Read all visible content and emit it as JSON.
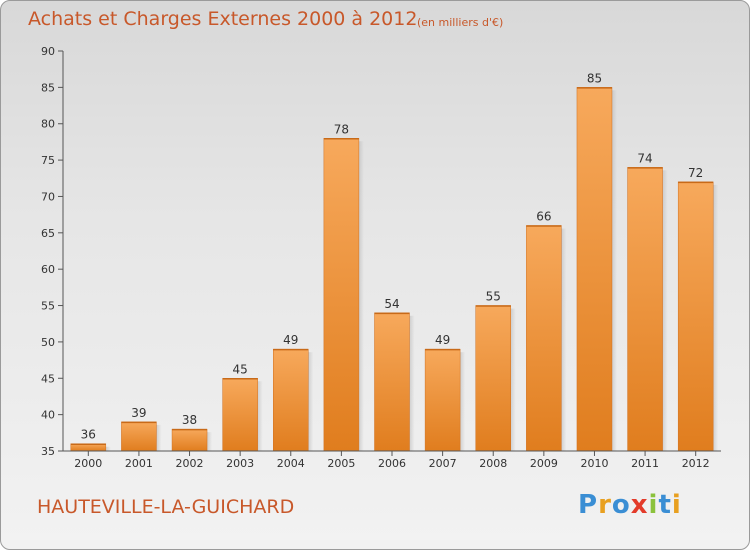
{
  "chart_data": {
    "type": "bar",
    "title": "Achats et Charges Externes 2000 à 2012",
    "subtitle": "(en milliers d'€)",
    "categories": [
      "2000",
      "2001",
      "2002",
      "2003",
      "2004",
      "2005",
      "2006",
      "2007",
      "2008",
      "2009",
      "2010",
      "2011",
      "2012"
    ],
    "values": [
      36,
      39,
      38,
      45,
      49,
      78,
      54,
      49,
      55,
      66,
      85,
      74,
      72
    ],
    "data_labels": [
      "36",
      "39",
      "38",
      "45",
      "49",
      "78",
      "54",
      "49",
      "55",
      "66",
      "85",
      "74",
      "72"
    ],
    "ylim": [
      35,
      90
    ],
    "yticks": [
      35,
      40,
      45,
      50,
      55,
      60,
      65,
      70,
      75,
      80,
      85,
      90
    ],
    "grid": false,
    "bar_color_light": "#f7a95c",
    "bar_color_dark": "#e07d1e"
  },
  "footer": {
    "place": "HAUTEVILLE-LA-GUICHARD",
    "logo_letters": [
      {
        "ch": "P",
        "color": "#3a8ed4"
      },
      {
        "ch": "r",
        "color": "#e8a020"
      },
      {
        "ch": "o",
        "color": "#3a8ed4"
      },
      {
        "ch": "x",
        "color": "#e33b2a"
      },
      {
        "ch": "i",
        "color": "#8bc23c"
      },
      {
        "ch": "t",
        "color": "#3a8ed4"
      },
      {
        "ch": "i",
        "color": "#e8a020"
      }
    ]
  }
}
